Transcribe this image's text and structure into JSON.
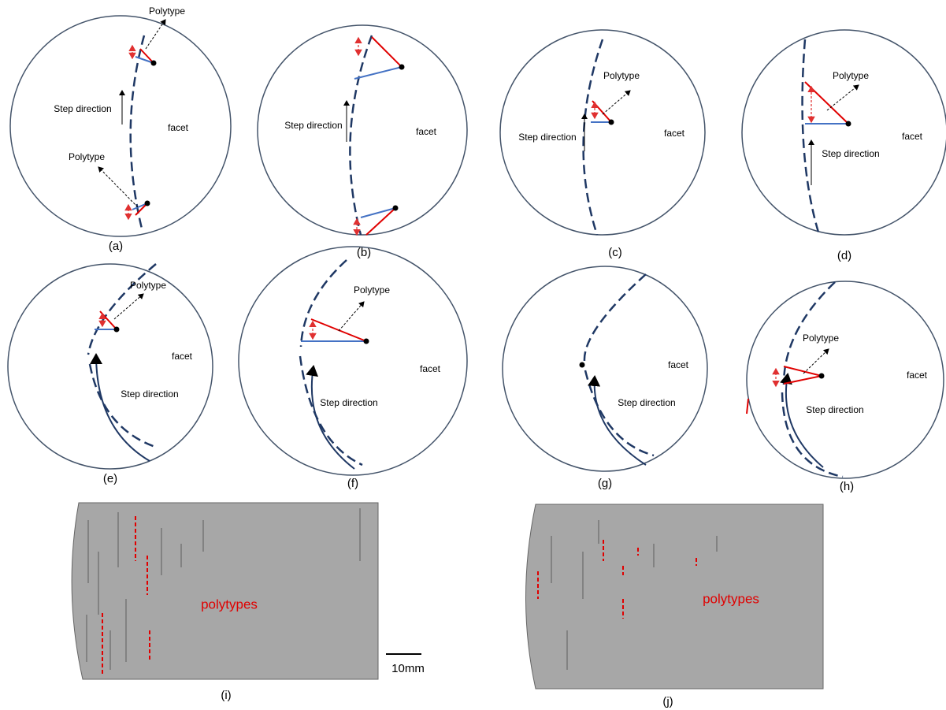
{
  "panels": [
    {
      "label": "(a)",
      "texts": [
        "Polytype",
        "Step direction",
        "facet",
        "Polytype"
      ]
    },
    {
      "label": "(b)",
      "texts": [
        "Step direction",
        "facet"
      ]
    },
    {
      "label": "(c)",
      "texts": [
        "Polytype",
        "Step direction",
        "facet"
      ]
    },
    {
      "label": "(d)",
      "texts": [
        "Polytype",
        "Step direction",
        "facet"
      ]
    },
    {
      "label": "(e)",
      "texts": [
        "Polytype",
        "facet",
        "Step direction"
      ]
    },
    {
      "label": "(f)",
      "texts": [
        "Polytype",
        "facet",
        "Step direction"
      ]
    },
    {
      "label": "(g)",
      "texts": [
        "facet",
        "Step direction"
      ]
    },
    {
      "label": "(h)",
      "texts": [
        "Polytype",
        "facet",
        "Step direction"
      ]
    }
  ],
  "images": [
    {
      "label": "(i)",
      "text": "polytypes",
      "scale": "10mm"
    },
    {
      "label": "(j)",
      "text": "polytypes"
    }
  ]
}
